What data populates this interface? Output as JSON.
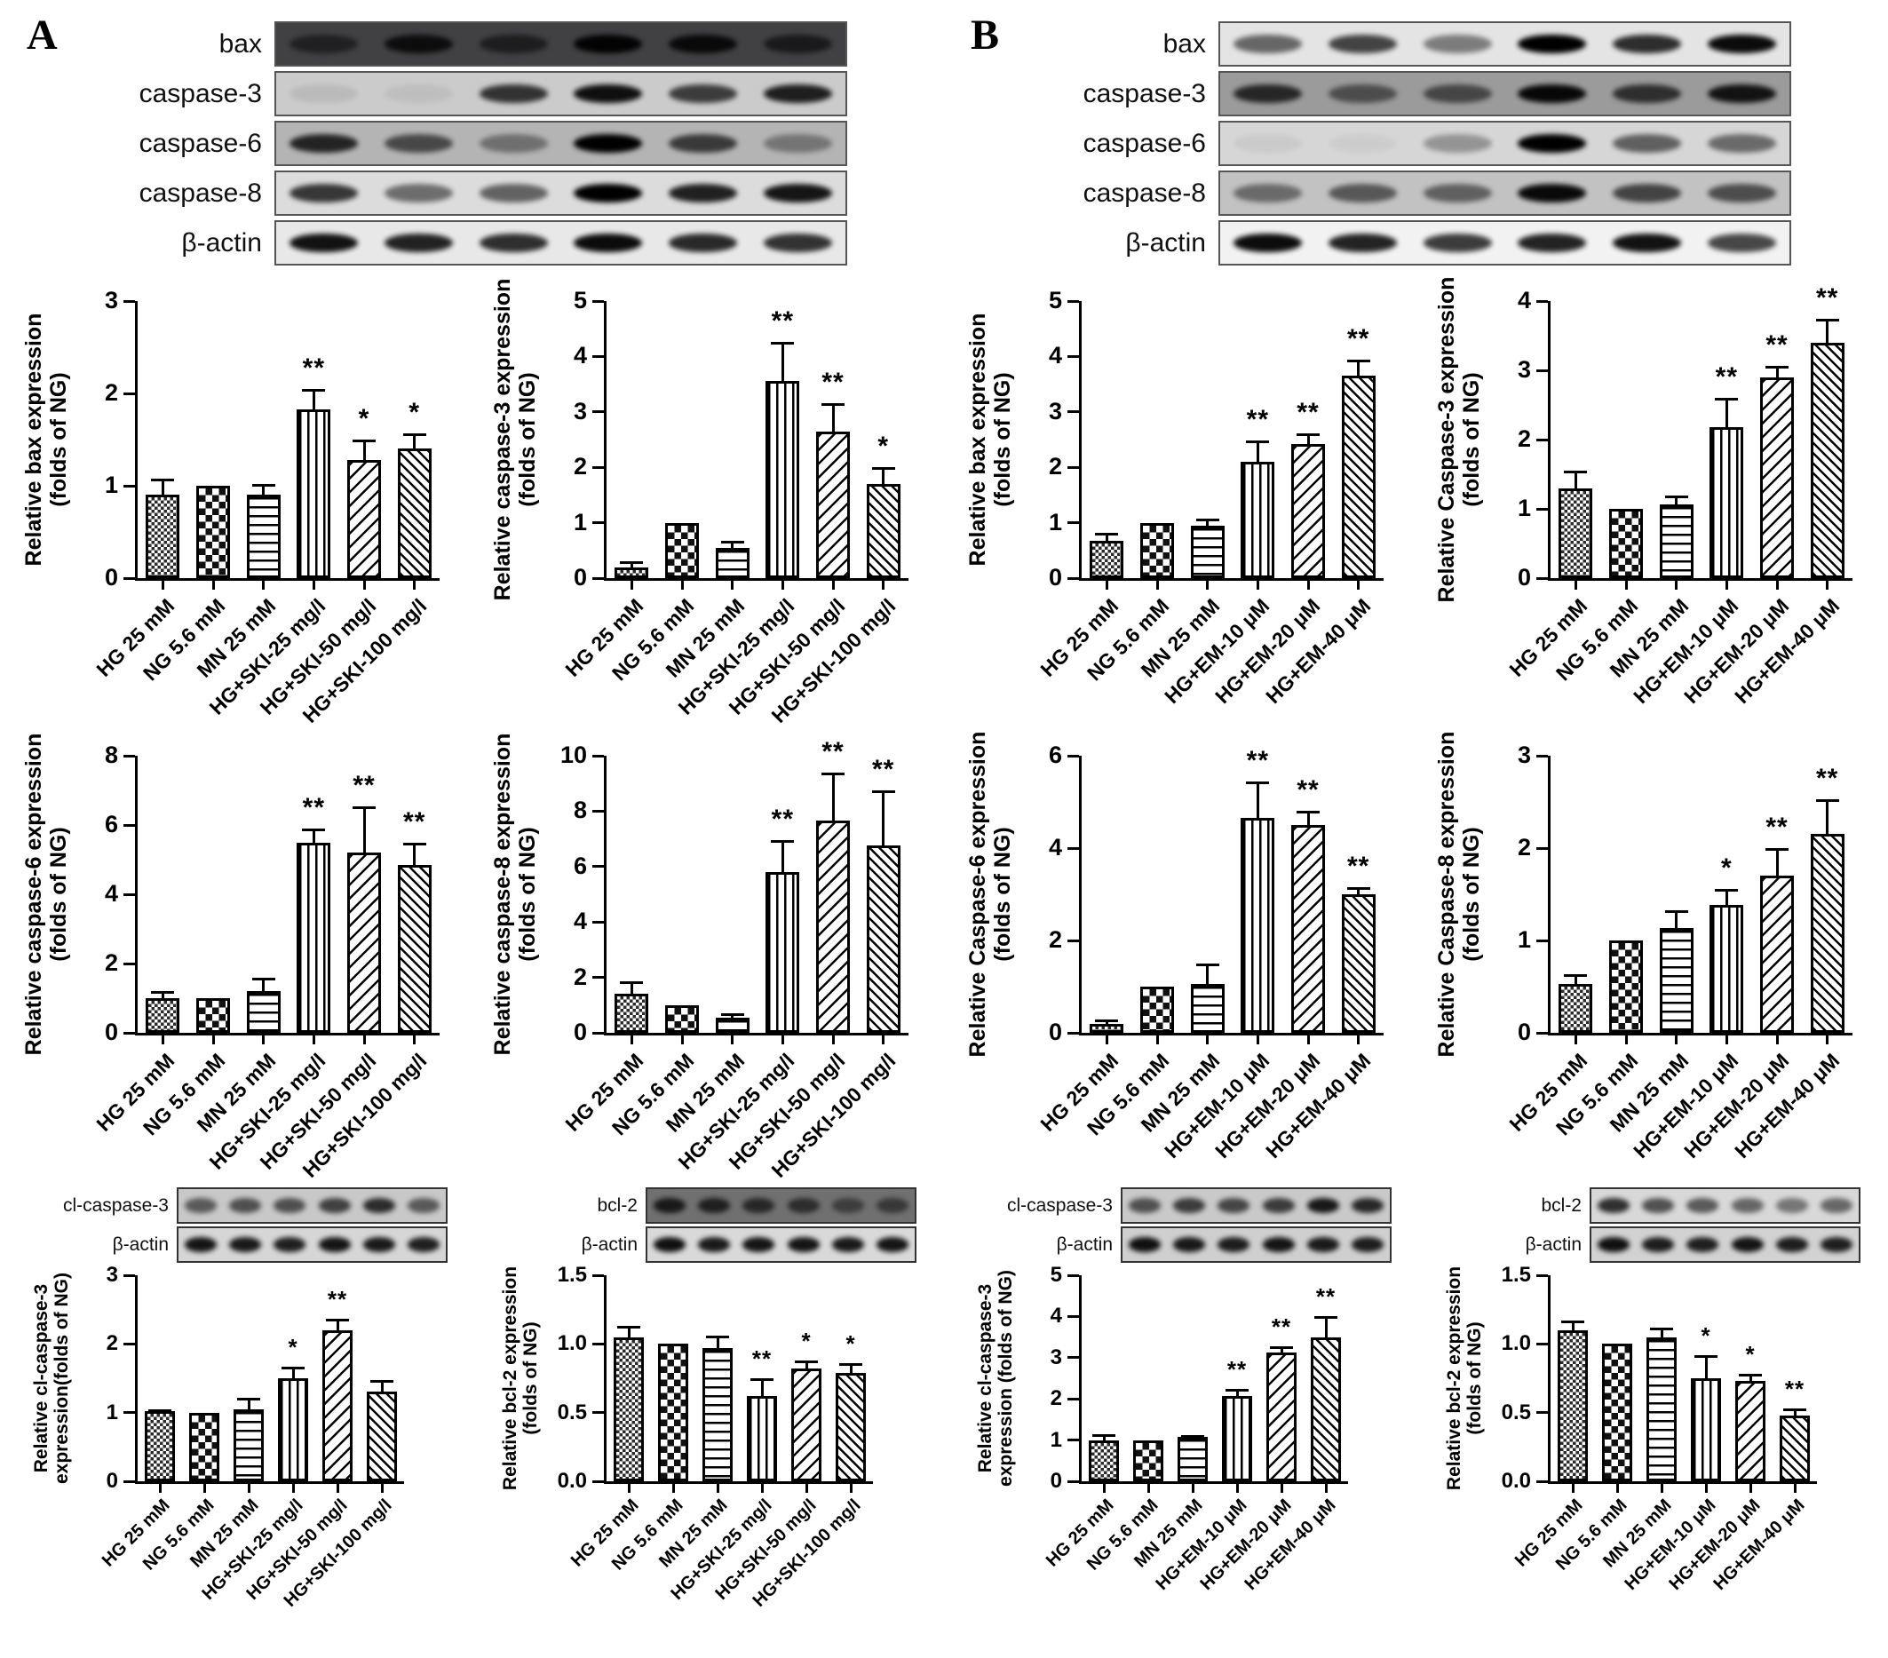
{
  "panelA": {
    "letter": "A"
  },
  "panelB": {
    "letter": "B"
  },
  "groups": {
    "ski": [
      "HG 25 mM",
      "NG 5.6 mM",
      "MN 25 mM",
      "HG+SKI-25 mg/l",
      "HG+SKI-50 mg/l",
      "HG+SKI-100 mg/l"
    ],
    "em": [
      "HG 25 mM",
      "NG 5.6 mM",
      "MN 25 mM",
      "HG+EM-10 μM",
      "HG+EM-20 μM",
      "HG+EM-40 μM"
    ]
  },
  "significance_legend": {
    "single": "*",
    "double": "**"
  },
  "blots": [
    {
      "label": "bax",
      "panel": "A",
      "bg": "#414144",
      "bands": [
        0.5,
        0.8,
        0.55,
        0.95,
        0.85,
        0.6
      ]
    },
    {
      "label": "caspase-3",
      "panel": "A",
      "bg": "#cbcbcb",
      "bands": [
        0.08,
        0.06,
        0.75,
        0.92,
        0.7,
        0.85
      ]
    },
    {
      "label": "caspase-6",
      "panel": "A",
      "bg": "#b4b4b4",
      "bands": [
        0.8,
        0.6,
        0.38,
        1.0,
        0.68,
        0.35
      ]
    },
    {
      "label": "caspase-8",
      "panel": "A",
      "bg": "#dcdcdc",
      "bands": [
        0.75,
        0.5,
        0.55,
        1.0,
        0.85,
        0.9
      ]
    },
    {
      "label": "β-actin",
      "panel": "A",
      "bg": "#e8e8e8",
      "bands": [
        0.92,
        0.85,
        0.8,
        0.95,
        0.82,
        0.78
      ]
    },
    {
      "label": "bax",
      "panel": "B",
      "bg": "#e4e4e4",
      "bands": [
        0.55,
        0.7,
        0.45,
        1.0,
        0.8,
        0.95
      ]
    },
    {
      "label": "caspase-3",
      "panel": "B",
      "bg": "#9b9b9b",
      "bands": [
        0.75,
        0.5,
        0.55,
        0.95,
        0.7,
        0.88
      ]
    },
    {
      "label": "caspase-6",
      "panel": "B",
      "bg": "#d6d6d6",
      "bands": [
        0.05,
        0.04,
        0.3,
        1.0,
        0.55,
        0.5
      ]
    },
    {
      "label": "caspase-8",
      "panel": "B",
      "bg": "#c2c2c2",
      "bands": [
        0.45,
        0.55,
        0.5,
        0.95,
        0.65,
        0.6
      ]
    },
    {
      "label": "β-actin",
      "panel": "B",
      "bg": "#f2f2f2",
      "bands": [
        0.95,
        0.85,
        0.75,
        0.85,
        0.92,
        0.7
      ]
    },
    {
      "label": "cl-caspase-3",
      "panel": "A",
      "bg": "#c8c8c8",
      "bands": [
        0.55,
        0.6,
        0.6,
        0.68,
        0.78,
        0.55
      ]
    },
    {
      "label": "β-actin",
      "panel": "A",
      "bg": "#d6d6d6",
      "bands": [
        0.9,
        0.88,
        0.85,
        0.9,
        0.88,
        0.85
      ]
    },
    {
      "label": "bcl-2",
      "panel": "A",
      "bg": "#707070",
      "bands": [
        0.78,
        0.72,
        0.65,
        0.6,
        0.45,
        0.5
      ]
    },
    {
      "label": "β-actin",
      "panel": "A",
      "bg": "#d9d9d9",
      "bands": [
        0.92,
        0.88,
        0.9,
        0.9,
        0.88,
        0.9
      ]
    },
    {
      "label": "cl-caspase-3",
      "panel": "B",
      "bg": "#c9c9c9",
      "bands": [
        0.6,
        0.7,
        0.65,
        0.7,
        0.88,
        0.8
      ]
    },
    {
      "label": "β-actin",
      "panel": "B",
      "bg": "#cfcfcf",
      "bands": [
        0.92,
        0.88,
        0.86,
        0.9,
        0.87,
        0.86
      ]
    },
    {
      "label": "bcl-2",
      "panel": "B",
      "bg": "#d8d8d8",
      "bands": [
        0.78,
        0.62,
        0.58,
        0.52,
        0.45,
        0.52
      ]
    },
    {
      "label": "β-actin",
      "panel": "B",
      "bg": "#d2d2d2",
      "bands": [
        0.92,
        0.86,
        0.85,
        0.9,
        0.86,
        0.85
      ]
    }
  ],
  "chart_data": [
    {
      "type": "bar",
      "panel": "A",
      "ylabel_lines": [
        "Relative bax expression",
        "(folds of NG)"
      ],
      "categories_ref": "ski",
      "ylim": [
        0,
        3
      ],
      "yticks": [
        "0",
        "1",
        "2",
        "3"
      ],
      "values": [
        0.9,
        1.0,
        0.9,
        1.83,
        1.28,
        1.4
      ],
      "errors": [
        0.18,
        0,
        0.12,
        0.22,
        0.22,
        0.17
      ],
      "sig": [
        "",
        "",
        "",
        "**",
        "*",
        "*"
      ]
    },
    {
      "type": "bar",
      "panel": "A",
      "ylabel_lines": [
        "Relative caspase-3 expression",
        "(folds of NG)"
      ],
      "categories_ref": "ski",
      "ylim": [
        0,
        5
      ],
      "yticks": [
        "0",
        "1",
        "2",
        "3",
        "4",
        "5"
      ],
      "values": [
        0.2,
        1.0,
        0.55,
        3.55,
        2.65,
        1.7
      ],
      "errors": [
        0.1,
        0,
        0.13,
        0.72,
        0.5,
        0.3
      ],
      "sig": [
        "",
        "",
        "",
        "**",
        "**",
        "*"
      ]
    },
    {
      "type": "bar",
      "panel": "A",
      "ylabel_lines": [
        "Relative caspase-6 expression",
        "(folds of NG)"
      ],
      "categories_ref": "ski",
      "ylim": [
        0,
        8
      ],
      "yticks": [
        "0",
        "2",
        "4",
        "6",
        "8"
      ],
      "values": [
        1.0,
        1.0,
        1.2,
        5.5,
        5.2,
        4.85
      ],
      "errors": [
        0.2,
        0,
        0.4,
        0.4,
        1.35,
        0.65
      ],
      "sig": [
        "",
        "",
        "",
        "**",
        "**",
        "**"
      ]
    },
    {
      "type": "bar",
      "panel": "A",
      "ylabel_lines": [
        "Relative caspase-8 expression",
        "(folds of NG)"
      ],
      "categories_ref": "ski",
      "ylim": [
        0,
        10
      ],
      "yticks": [
        "0",
        "2",
        "4",
        "6",
        "8",
        "10"
      ],
      "values": [
        1.4,
        1.0,
        0.55,
        5.8,
        7.65,
        6.75
      ],
      "errors": [
        0.45,
        0,
        0.15,
        1.15,
        1.75,
        2.0
      ],
      "sig": [
        "",
        "",
        "",
        "**",
        "**",
        "**"
      ]
    },
    {
      "type": "bar",
      "panel": "A",
      "ylabel_lines": [
        "Relative cl-caspase-3",
        "expression(folds of NG)"
      ],
      "categories_ref": "ski",
      "ylim": [
        0,
        3
      ],
      "yticks": [
        "0",
        "1",
        "2",
        "3"
      ],
      "values": [
        1.02,
        1.0,
        1.05,
        1.5,
        2.2,
        1.3
      ],
      "errors": [
        0.03,
        0,
        0.17,
        0.17,
        0.17,
        0.17
      ],
      "sig": [
        "",
        "",
        "",
        "*",
        "**",
        ""
      ]
    },
    {
      "type": "bar",
      "panel": "A",
      "ylabel_lines": [
        "Relative bcl-2 expression",
        "(folds of NG)"
      ],
      "categories_ref": "ski",
      "ylim": [
        0,
        1.5
      ],
      "yticks": [
        "0.0",
        "0.5",
        "1.0",
        "1.5"
      ],
      "values": [
        1.05,
        1.0,
        0.97,
        0.62,
        0.82,
        0.79
      ],
      "errors": [
        0.08,
        0,
        0.09,
        0.13,
        0.06,
        0.07
      ],
      "sig": [
        "",
        "",
        "",
        "**",
        "*",
        "*"
      ]
    },
    {
      "type": "bar",
      "panel": "B",
      "ylabel_lines": [
        "Relative bax expression",
        "(folds of NG)"
      ],
      "categories_ref": "em",
      "ylim": [
        0,
        5
      ],
      "yticks": [
        "0",
        "1",
        "2",
        "3",
        "4",
        "5"
      ],
      "values": [
        0.68,
        1.0,
        0.95,
        2.1,
        2.42,
        3.65
      ],
      "errors": [
        0.13,
        0,
        0.13,
        0.38,
        0.2,
        0.3
      ],
      "sig": [
        "",
        "",
        "",
        "**",
        "**",
        "**"
      ]
    },
    {
      "type": "bar",
      "panel": "B",
      "ylabel_lines": [
        "Relative Caspase-3 expression",
        "(folds of NG)"
      ],
      "categories_ref": "em",
      "ylim": [
        0,
        4
      ],
      "yticks": [
        "0",
        "1",
        "2",
        "3",
        "4"
      ],
      "values": [
        1.3,
        1.0,
        1.07,
        2.18,
        2.9,
        3.4
      ],
      "errors": [
        0.25,
        0,
        0.12,
        0.42,
        0.17,
        0.35
      ],
      "sig": [
        "",
        "",
        "",
        "**",
        "**",
        "**"
      ]
    },
    {
      "type": "bar",
      "panel": "B",
      "ylabel_lines": [
        "Relative Caspase-6 expression",
        "(folds of NG)"
      ],
      "categories_ref": "em",
      "ylim": [
        0,
        6
      ],
      "yticks": [
        "0",
        "2",
        "4",
        "6"
      ],
      "values": [
        0.2,
        1.0,
        1.05,
        4.65,
        4.5,
        3.0
      ],
      "errors": [
        0.08,
        0,
        0.45,
        0.8,
        0.3,
        0.15
      ],
      "sig": [
        "",
        "",
        "",
        "**",
        "**",
        "**"
      ]
    },
    {
      "type": "bar",
      "panel": "B",
      "ylabel_lines": [
        "Relative Caspase-8 expression",
        "(folds of NG)"
      ],
      "categories_ref": "em",
      "ylim": [
        0,
        3
      ],
      "yticks": [
        "0",
        "1",
        "2",
        "3"
      ],
      "values": [
        0.53,
        1.0,
        1.13,
        1.38,
        1.7,
        2.15
      ],
      "errors": [
        0.1,
        0,
        0.2,
        0.18,
        0.3,
        0.38
      ],
      "sig": [
        "",
        "",
        "",
        "*",
        "**",
        "**"
      ]
    },
    {
      "type": "bar",
      "panel": "B",
      "ylabel_lines": [
        "Relative cl-caspase-3",
        "expression (folds of NG)"
      ],
      "categories_ref": "em",
      "ylim": [
        0,
        5
      ],
      "yticks": [
        "0",
        "1",
        "2",
        "3",
        "4",
        "5"
      ],
      "values": [
        1.0,
        1.0,
        1.07,
        2.07,
        3.12,
        3.5
      ],
      "errors": [
        0.15,
        0,
        0.05,
        0.18,
        0.15,
        0.5
      ],
      "sig": [
        "",
        "",
        "",
        "**",
        "**",
        "**"
      ]
    },
    {
      "type": "bar",
      "panel": "B",
      "ylabel_lines": [
        "Relative bcl-2 expression",
        "(folds of NG)"
      ],
      "categories_ref": "em",
      "ylim": [
        0,
        1.5
      ],
      "yticks": [
        "0.0",
        "0.5",
        "1.0",
        "1.5"
      ],
      "values": [
        1.1,
        1.0,
        1.05,
        0.75,
        0.73,
        0.48
      ],
      "errors": [
        0.07,
        0,
        0.07,
        0.17,
        0.05,
        0.05
      ],
      "sig": [
        "",
        "",
        "",
        "*",
        "*",
        "**"
      ]
    }
  ]
}
